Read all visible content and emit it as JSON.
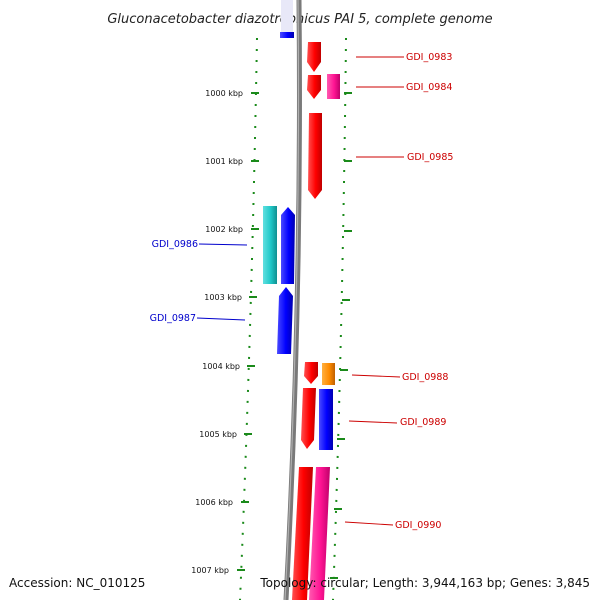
{
  "title": "Gluconacetobacter diazotrophicus PAI 5, complete genome",
  "footer": {
    "accession": "Accession: NC_010125",
    "topology": "Topology: circular; Length: 3,944,163 bp; Genes: 3,845"
  },
  "ticks": [
    {
      "label": "1000 kbp"
    },
    {
      "label": "1001 kbp"
    },
    {
      "label": "1002 kbp"
    },
    {
      "label": "1003 kbp"
    },
    {
      "label": "1004 kbp"
    },
    {
      "label": "1005 kbp"
    },
    {
      "label": "1006 kbp"
    },
    {
      "label": "1007 kbp"
    }
  ],
  "gene_labels": [
    {
      "text": "GDI_0983",
      "strand": "forward",
      "color": "#cc0000"
    },
    {
      "text": "GDI_0984",
      "strand": "forward",
      "color": "#cc0000"
    },
    {
      "text": "GDI_0985",
      "strand": "forward",
      "color": "#cc0000"
    },
    {
      "text": "GDI_0986",
      "strand": "reverse",
      "color": "#0000cc"
    },
    {
      "text": "GDI_0987",
      "strand": "reverse",
      "color": "#0000cc"
    },
    {
      "text": "GDI_0988",
      "strand": "forward",
      "color": "#cc0000"
    },
    {
      "text": "GDI_0989",
      "strand": "forward",
      "color": "#cc0000"
    },
    {
      "text": "GDI_0990",
      "strand": "forward",
      "color": "#cc0000"
    }
  ],
  "colors": {
    "backbone": "#808080",
    "forward_cds": "#ff0000",
    "reverse_cds": "#0000ff",
    "cyan_feature": "#20c8c8",
    "magenta_feature": "#ff1493",
    "orange_feature": "#ff8c00",
    "dotted_ring": "#1a8a1a"
  }
}
